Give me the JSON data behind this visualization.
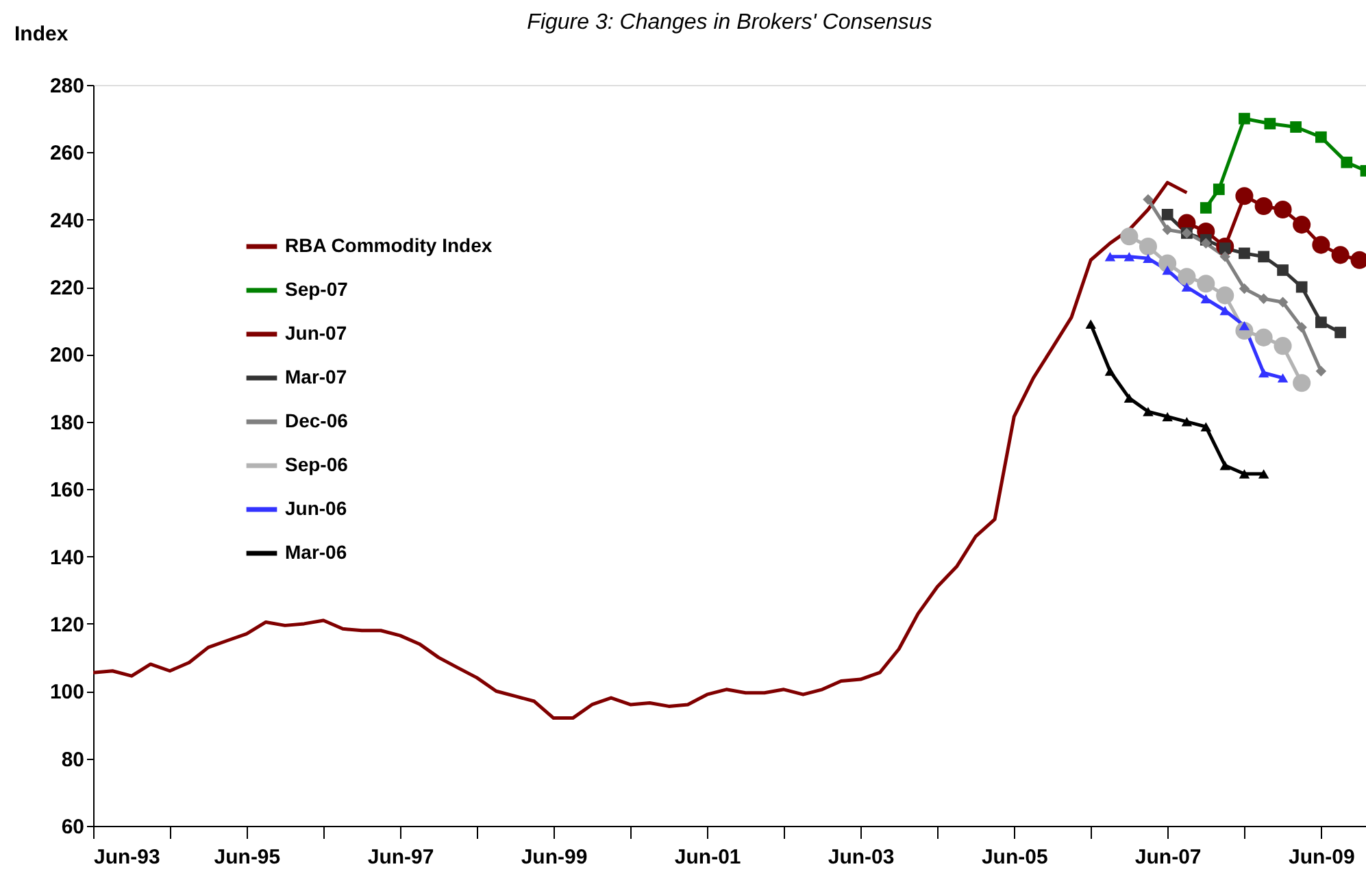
{
  "chart_data": {
    "type": "line",
    "title": "Figure 3: Changes in Brokers' Consensus",
    "ylabel": "Index",
    "xlim": [
      "1993-06",
      "2010-01"
    ],
    "ylim": [
      60,
      280
    ],
    "xticks": [
      {
        "value": "1993-06",
        "label": "Jun-93"
      },
      {
        "value": "1994-06",
        "label": null
      },
      {
        "value": "1995-06",
        "label": "Jun-95"
      },
      {
        "value": "1996-06",
        "label": null
      },
      {
        "value": "1997-06",
        "label": "Jun-97"
      },
      {
        "value": "1998-06",
        "label": null
      },
      {
        "value": "1999-06",
        "label": "Jun-99"
      },
      {
        "value": "2000-06",
        "label": null
      },
      {
        "value": "2001-06",
        "label": "Jun-01"
      },
      {
        "value": "2002-06",
        "label": null
      },
      {
        "value": "2003-06",
        "label": "Jun-03"
      },
      {
        "value": "2004-06",
        "label": null
      },
      {
        "value": "2005-06",
        "label": "Jun-05"
      },
      {
        "value": "2006-06",
        "label": null
      },
      {
        "value": "2007-06",
        "label": "Jun-07"
      },
      {
        "value": "2008-06",
        "label": null
      },
      {
        "value": "2009-06",
        "label": "Jun-09"
      }
    ],
    "yticks": [
      60,
      80,
      100,
      120,
      140,
      160,
      180,
      200,
      220,
      240,
      260,
      280
    ],
    "grid": false,
    "legend": "left",
    "line_style": "solid",
    "series": [
      {
        "name": "RBA Commodity Index",
        "color": "#800000",
        "marker": "none",
        "x": [
          "1993-06",
          "1993-09",
          "1993-12",
          "1994-03",
          "1994-06",
          "1994-09",
          "1994-12",
          "1995-03",
          "1995-06",
          "1995-09",
          "1995-12",
          "1996-03",
          "1996-06",
          "1996-09",
          "1996-12",
          "1997-03",
          "1997-06",
          "1997-09",
          "1997-12",
          "1998-03",
          "1998-06",
          "1998-09",
          "1998-12",
          "1999-03",
          "1999-06",
          "1999-09",
          "1999-12",
          "2000-03",
          "2000-06",
          "2000-09",
          "2000-12",
          "2001-03",
          "2001-06",
          "2001-09",
          "2001-12",
          "2002-03",
          "2002-06",
          "2002-09",
          "2002-12",
          "2003-03",
          "2003-06",
          "2003-09",
          "2003-12",
          "2004-03",
          "2004-06",
          "2004-09",
          "2004-12",
          "2005-03",
          "2005-06",
          "2005-09",
          "2005-12",
          "2006-03",
          "2006-06",
          "2006-09",
          "2006-12",
          "2007-03",
          "2007-06",
          "2007-09"
        ],
        "values": [
          105.5,
          106,
          104.5,
          108,
          106,
          108.5,
          113,
          115,
          117,
          120.5,
          119.5,
          120,
          121,
          118.5,
          118,
          118,
          116.5,
          114,
          110,
          107,
          104,
          100,
          98.5,
          97,
          92,
          92,
          96,
          98,
          96,
          96.5,
          95.5,
          96,
          99,
          100.5,
          99.5,
          99.5,
          100.5,
          99,
          100.5,
          103,
          103.5,
          105.5,
          112.5,
          123,
          131,
          137,
          146,
          151,
          181.5,
          193,
          202,
          211,
          228,
          233,
          237,
          243,
          251,
          248
        ]
      },
      {
        "name": "Sep-07",
        "color": "#008000",
        "marker": "square",
        "x": [
          "2007-12",
          "2008-02",
          "2008-06",
          "2008-10",
          "2009-02",
          "2009-06",
          "2009-10",
          "2010-01"
        ],
        "values": [
          243.5,
          249,
          270,
          268.5,
          267.5,
          264.5,
          257,
          254.5
        ]
      },
      {
        "name": "Jun-07",
        "color": "#800000",
        "marker": "circle",
        "x": [
          "2007-09",
          "2007-12",
          "2008-03",
          "2008-06",
          "2008-09",
          "2008-12",
          "2009-03",
          "2009-06",
          "2009-09",
          "2009-12"
        ],
        "values": [
          239,
          236.5,
          232,
          247,
          244,
          243,
          238.5,
          232.5,
          229.5,
          228
        ]
      },
      {
        "name": "Mar-07",
        "color": "#333333",
        "marker": "square",
        "x": [
          "2007-06",
          "2007-09",
          "2007-12",
          "2008-03",
          "2008-06",
          "2008-09",
          "2008-12",
          "2009-03",
          "2009-06",
          "2009-09"
        ],
        "values": [
          241.5,
          236,
          234,
          231.5,
          230,
          229,
          225,
          220,
          209.5,
          206.5
        ]
      },
      {
        "name": "Dec-06",
        "color": "#808080",
        "marker": "diamond",
        "x": [
          "2007-03",
          "2007-06",
          "2007-09",
          "2007-12",
          "2008-03",
          "2008-06",
          "2008-09",
          "2008-12",
          "2009-03",
          "2009-06"
        ],
        "values": [
          246,
          237,
          236,
          233,
          229,
          219.5,
          216.5,
          215.5,
          208,
          195
        ]
      },
      {
        "name": "Sep-06",
        "color": "#b3b3b3",
        "marker": "circle",
        "x": [
          "2006-12",
          "2007-03",
          "2007-06",
          "2007-09",
          "2007-12",
          "2008-03",
          "2008-06",
          "2008-09",
          "2008-12",
          "2009-03"
        ],
        "values": [
          235,
          232,
          227,
          223,
          221,
          217.5,
          207,
          205,
          202.5,
          191.5
        ]
      },
      {
        "name": "Jun-06",
        "color": "#3333ff",
        "marker": "triangle",
        "x": [
          "2006-09",
          "2006-12",
          "2007-03",
          "2007-06",
          "2007-09",
          "2007-12",
          "2008-03",
          "2008-06",
          "2008-09",
          "2008-12"
        ],
        "values": [
          229,
          229,
          228.5,
          225,
          220,
          216.5,
          213,
          208.5,
          194.5,
          193
        ]
      },
      {
        "name": "Mar-06",
        "color": "#000000",
        "marker": "triangle",
        "x": [
          "2006-06",
          "2006-09",
          "2006-12",
          "2007-03",
          "2007-06",
          "2007-09",
          "2007-12",
          "2008-03",
          "2008-06",
          "2008-09"
        ],
        "values": [
          209,
          195,
          187,
          183,
          181.5,
          180,
          178.5,
          167,
          164.5,
          164.5
        ]
      }
    ]
  }
}
